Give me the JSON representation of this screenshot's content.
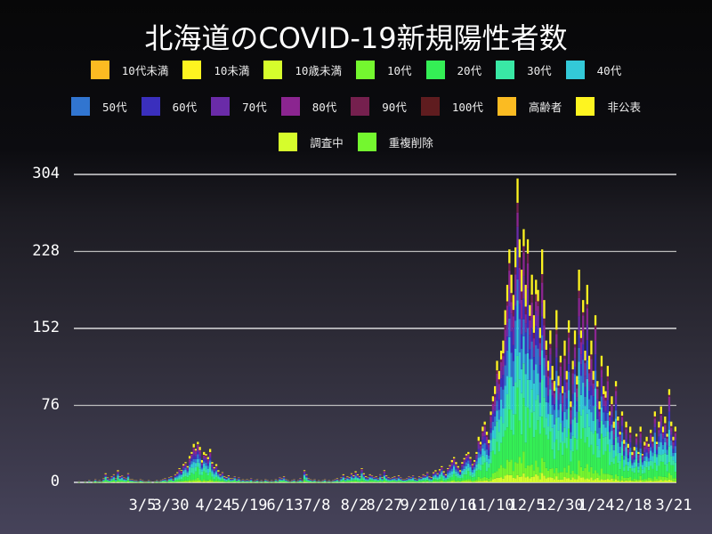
{
  "title": "北海道のCOVID-19新規陽性者数",
  "legend": [
    [
      {
        "label": "10代未満",
        "color": "#fbbb22"
      },
      {
        "label": "10未満",
        "color": "#fef420"
      },
      {
        "label": "10歳未満",
        "color": "#d6fd2c"
      },
      {
        "label": "10代",
        "color": "#74f72f"
      },
      {
        "label": "20代",
        "color": "#34ef55"
      },
      {
        "label": "30代",
        "color": "#39e8a5"
      },
      {
        "label": "40代",
        "color": "#33c9d8"
      }
    ],
    [
      {
        "label": "50代",
        "color": "#3175d0"
      },
      {
        "label": "60代",
        "color": "#3a2fbd"
      },
      {
        "label": "70代",
        "color": "#6a2ba8"
      },
      {
        "label": "80代",
        "color": "#8b2590"
      },
      {
        "label": "90代",
        "color": "#75204e"
      },
      {
        "label": "100代",
        "color": "#5f1c1f"
      },
      {
        "label": "高齢者",
        "color": "#fbbb22"
      },
      {
        "label": "非公表",
        "color": "#fef420"
      }
    ],
    [
      {
        "label": "調査中",
        "color": "#d6fd2c"
      },
      {
        "label": "重複削除",
        "color": "#74f72f"
      }
    ]
  ],
  "chart_data": {
    "type": "bar",
    "stacked": true,
    "title": "北海道のCOVID-19新規陽性者数",
    "xlabel": "",
    "ylabel": "",
    "ylim": [
      0,
      304
    ],
    "yticks": [
      0,
      76,
      152,
      228,
      304
    ],
    "xticks": [
      "3/5",
      "3/30",
      "4/24",
      "5/19",
      "6/13",
      "7/8",
      "8/2",
      "8/27",
      "9/21",
      "10/16",
      "11/10",
      "12/5",
      "12/30",
      "1/24",
      "2/18",
      "3/21"
    ],
    "grid": true,
    "legend_position": "top",
    "series_order": [
      "20代",
      "10代",
      "30代",
      "40代",
      "50代",
      "60代",
      "70代",
      "80代",
      "90代",
      "100代",
      "高齢者",
      "非公表",
      "調査中"
    ],
    "period_start": "2020-01-28",
    "period_end": "2021-03-24",
    "weekly_daily_totals": [
      [
        0,
        0,
        1,
        0,
        0,
        1,
        0
      ],
      [
        2,
        0,
        1,
        3,
        1,
        2,
        1
      ],
      [
        4,
        9,
        5,
        3,
        6,
        8,
        4
      ],
      [
        12,
        6,
        7,
        5,
        4,
        9,
        3
      ],
      [
        3,
        2,
        2,
        1,
        3,
        2,
        1
      ],
      [
        1,
        2,
        1,
        0,
        1,
        2,
        1
      ],
      [
        2,
        3,
        4,
        2,
        5,
        6,
        3
      ],
      [
        8,
        10,
        14,
        12,
        18,
        20,
        16
      ],
      [
        26,
        30,
        38,
        33,
        40,
        35,
        22
      ],
      [
        30,
        28,
        25,
        33,
        20,
        15,
        18
      ],
      [
        12,
        8,
        10,
        6,
        5,
        7,
        4
      ],
      [
        4,
        6,
        3,
        5,
        2,
        3,
        2
      ],
      [
        3,
        2,
        4,
        1,
        2,
        3,
        1
      ],
      [
        2,
        1,
        3,
        2,
        1,
        2,
        1
      ],
      [
        3,
        2,
        5,
        4,
        6,
        3,
        2
      ],
      [
        1,
        2,
        3,
        1,
        2,
        4,
        2
      ],
      [
        12,
        8,
        4,
        3,
        2,
        3,
        1
      ],
      [
        2,
        1,
        2,
        3,
        1,
        2,
        1
      ],
      [
        2,
        3,
        4,
        2,
        5,
        8,
        4
      ],
      [
        6,
        5,
        9,
        7,
        11,
        8,
        6
      ],
      [
        14,
        9,
        6,
        5,
        8,
        7,
        5
      ],
      [
        6,
        4,
        8,
        5,
        12,
        7,
        5
      ],
      [
        4,
        5,
        6,
        4,
        7,
        5,
        3
      ],
      [
        3,
        4,
        6,
        5,
        7,
        4,
        3
      ],
      [
        6,
        5,
        8,
        7,
        10,
        6,
        5
      ],
      [
        10,
        12,
        9,
        13,
        16,
        11,
        8
      ],
      [
        14,
        17,
        22,
        25,
        20,
        16,
        12
      ],
      [
        20,
        24,
        28,
        30,
        25,
        18,
        22
      ],
      [
        30,
        45,
        40,
        55,
        60,
        50,
        42
      ],
      [
        70,
        85,
        95,
        120,
        110,
        130,
        140
      ],
      [
        170,
        195,
        230,
        205,
        185,
        232,
        300
      ],
      [
        240,
        210,
        250,
        195,
        240,
        175,
        205
      ],
      [
        165,
        200,
        190,
        152,
        230,
        180,
        140
      ],
      [
        120,
        150,
        115,
        100,
        170,
        105,
        125
      ],
      [
        95,
        140,
        110,
        160,
        80,
        120,
        150
      ],
      [
        105,
        210,
        150,
        180,
        130,
        195,
        125
      ],
      [
        140,
        110,
        165,
        100,
        80,
        125,
        95
      ],
      [
        90,
        115,
        70,
        85,
        60,
        100,
        65
      ],
      [
        50,
        70,
        42,
        60,
        38,
        55,
        30
      ],
      [
        35,
        48,
        30,
        55,
        28,
        40,
        45
      ],
      [
        38,
        52,
        45,
        70,
        40,
        60,
        75
      ],
      [
        55,
        65,
        48,
        92,
        60,
        45,
        55
      ]
    ]
  }
}
